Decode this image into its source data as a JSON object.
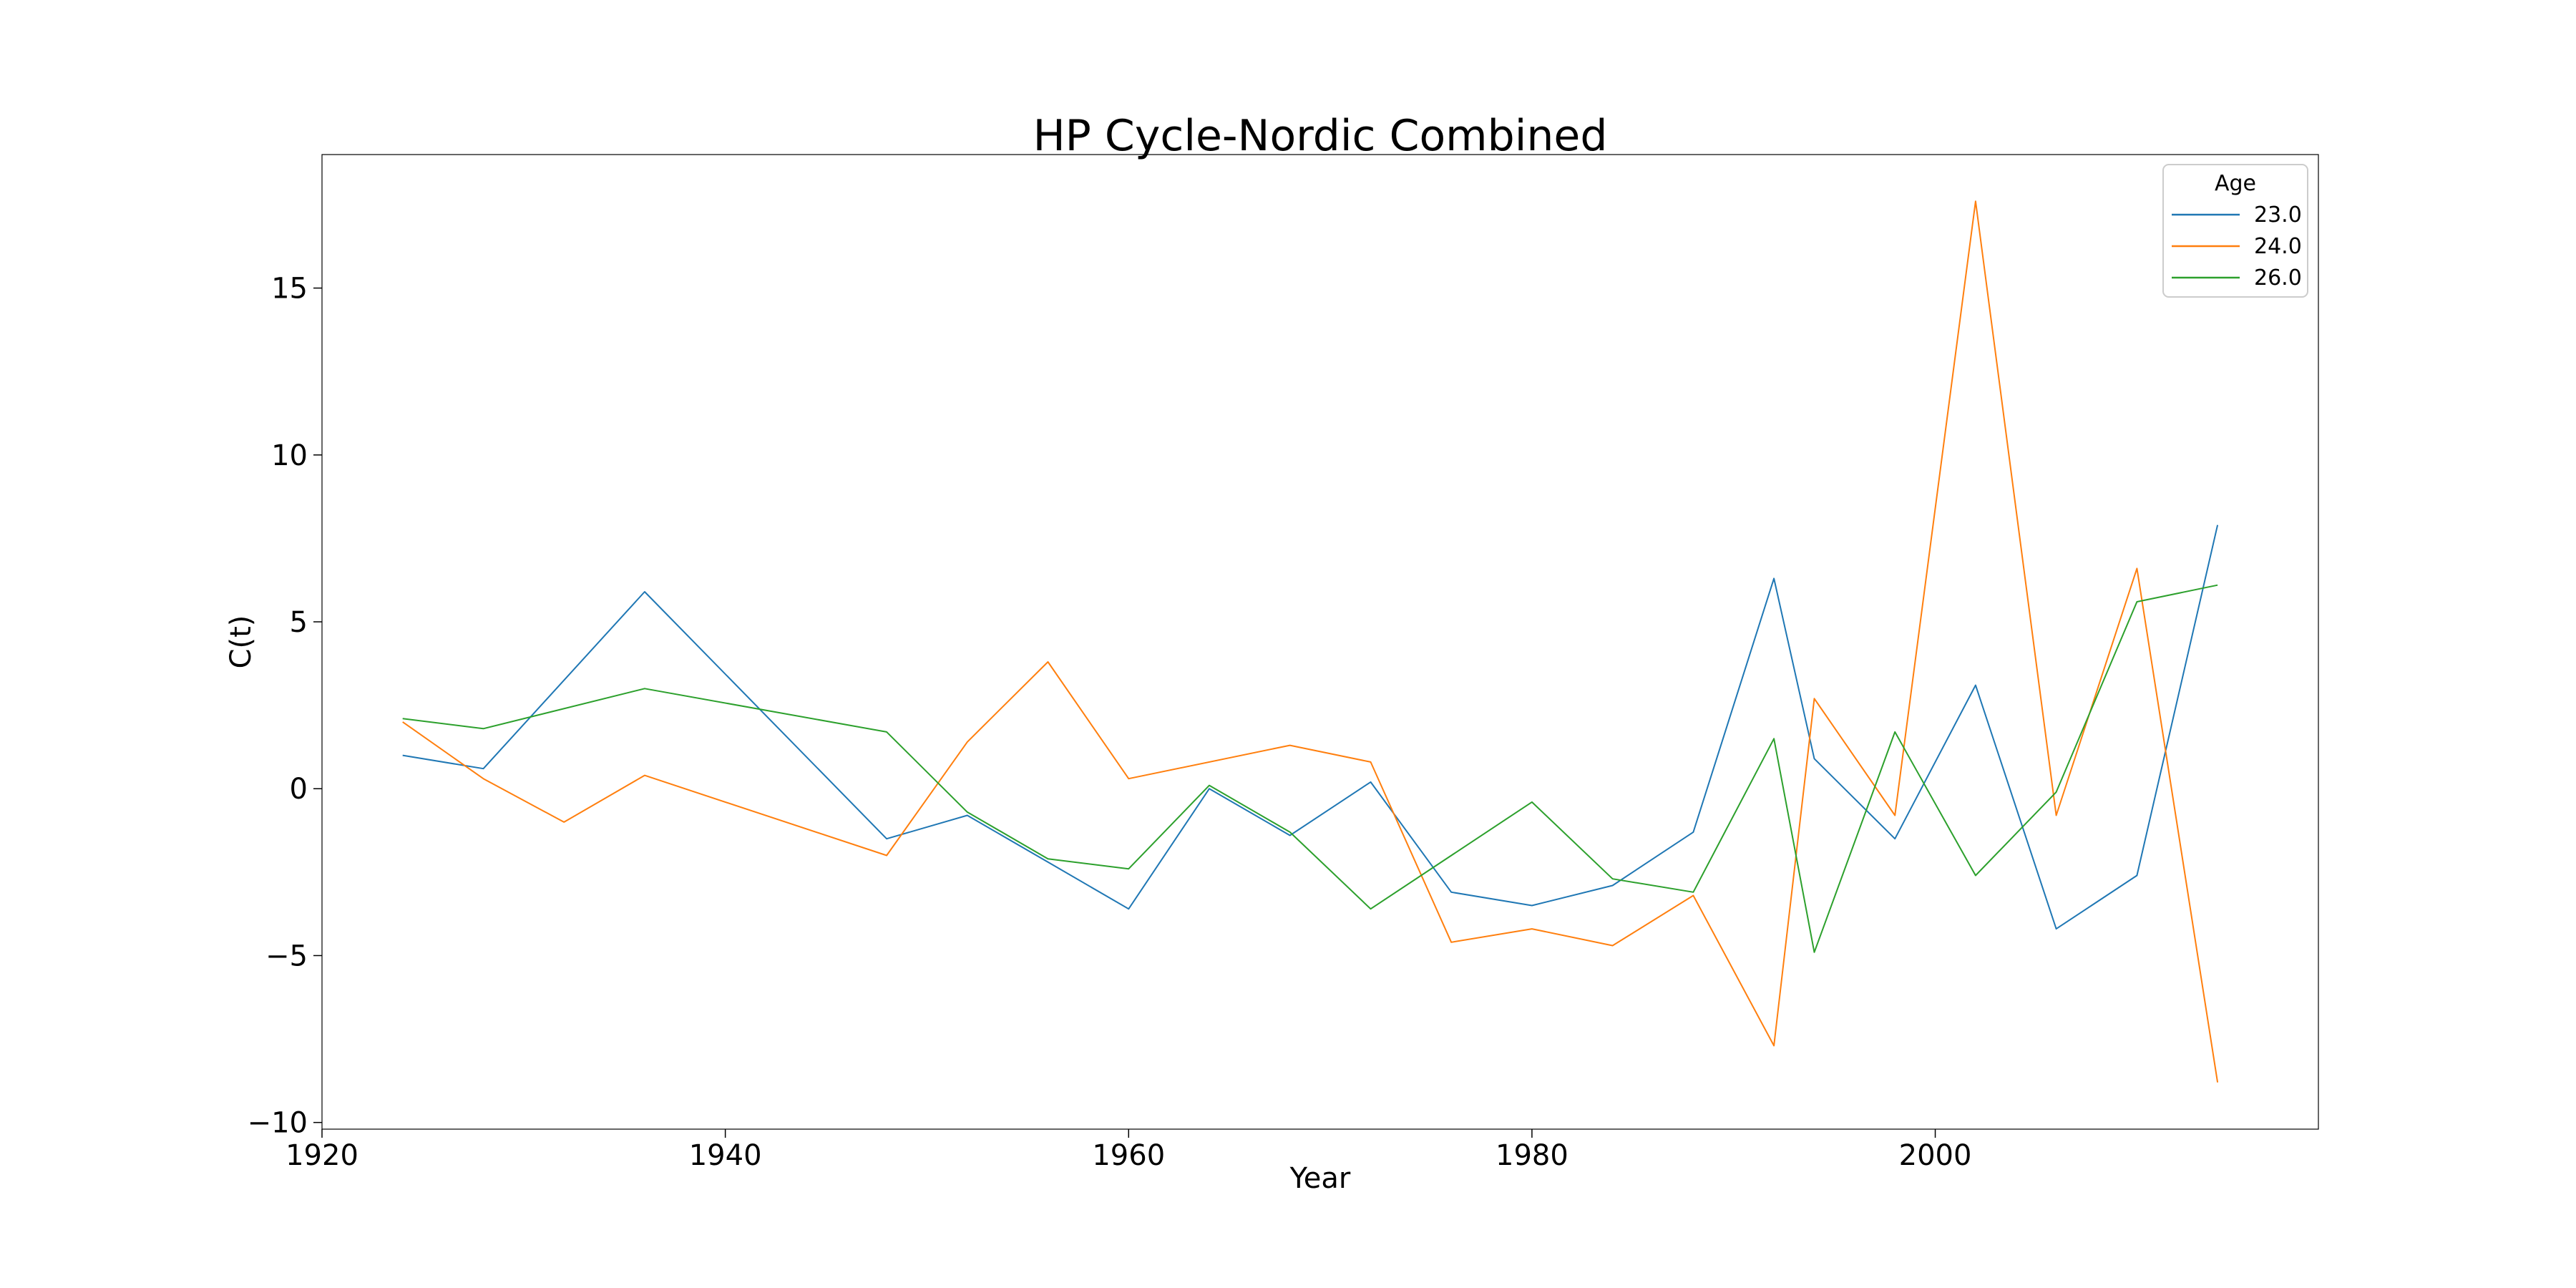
{
  "chart_data": {
    "type": "line",
    "title": "HP Cycle-Nordic Combined",
    "xlabel": "Year",
    "ylabel": "C(t)",
    "xlim": [
      1920,
      2019
    ],
    "ylim": [
      -10.2,
      19.0
    ],
    "xticks": [
      1920,
      1940,
      1960,
      1980,
      2000
    ],
    "yticks": [
      -10,
      -5,
      0,
      5,
      10,
      15
    ],
    "xtick_labels": [
      "1920",
      "1940",
      "1960",
      "1980",
      "2000"
    ],
    "ytick_labels": [
      "−10",
      "−5",
      "0",
      "5",
      "10",
      "15"
    ],
    "grid": false,
    "legend": {
      "title": "Age",
      "position": "top-right"
    },
    "series": [
      {
        "name": "23.0",
        "color": "#1f77b4",
        "x": [
          1924,
          1928,
          1936,
          1948,
          1952,
          1956,
          1960,
          1964,
          1968,
          1972,
          1976,
          1980,
          1984,
          1988,
          1992,
          1994,
          1998,
          2002,
          2006,
          2010,
          2014
        ],
        "y": [
          1.0,
          0.6,
          5.9,
          -1.5,
          -0.8,
          -2.2,
          -3.6,
          0.0,
          -1.4,
          0.2,
          -3.1,
          -3.5,
          -2.9,
          -1.3,
          6.3,
          0.9,
          -1.5,
          3.1,
          -4.2,
          -2.6,
          7.9
        ]
      },
      {
        "name": "24.0",
        "color": "#ff7f0e",
        "x": [
          1924,
          1928,
          1932,
          1936,
          1948,
          1952,
          1956,
          1960,
          1968,
          1972,
          1976,
          1980,
          1984,
          1988,
          1992,
          1994,
          1998,
          2002,
          2006,
          2010,
          2014
        ],
        "y": [
          2.0,
          0.3,
          -1.0,
          0.4,
          -2.0,
          1.4,
          3.8,
          0.3,
          1.3,
          0.8,
          -4.6,
          -4.2,
          -4.7,
          -3.2,
          -7.7,
          2.7,
          -0.8,
          17.6,
          -0.8,
          6.6,
          -8.8
        ]
      },
      {
        "name": "26.0",
        "color": "#2ca02c",
        "x": [
          1924,
          1928,
          1936,
          1948,
          1952,
          1956,
          1960,
          1964,
          1968,
          1972,
          1980,
          1984,
          1988,
          1992,
          1994,
          1998,
          2002,
          2006,
          2010,
          2014
        ],
        "y": [
          2.1,
          1.8,
          3.0,
          1.7,
          -0.7,
          -2.1,
          -2.4,
          0.1,
          -1.3,
          -3.6,
          -0.4,
          -2.7,
          -3.1,
          1.5,
          -4.9,
          1.7,
          -2.6,
          -0.1,
          5.6,
          6.1
        ]
      }
    ]
  }
}
